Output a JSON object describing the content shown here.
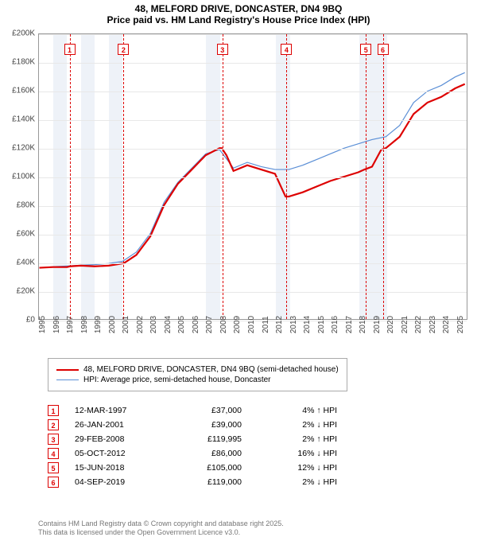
{
  "title": "48, MELFORD DRIVE, DONCASTER, DN4 9BQ",
  "subtitle": "Price paid vs. HM Land Registry's House Price Index (HPI)",
  "chart": {
    "type": "line",
    "ylim": [
      0,
      200000
    ],
    "ytick_step": 20000,
    "xlim": [
      1995,
      2025.8
    ],
    "xticks": [
      1995,
      1996,
      1997,
      1998,
      1999,
      2000,
      2001,
      2002,
      2003,
      2004,
      2005,
      2006,
      2007,
      2008,
      2009,
      2010,
      2011,
      2012,
      2013,
      2014,
      2015,
      2016,
      2017,
      2018,
      2019,
      2020,
      2021,
      2022,
      2023,
      2024,
      2025
    ],
    "y_prefix": "£",
    "y_suffix": "K",
    "grid_color": "#e8e8e8",
    "band_color": "#e2eaf4",
    "bands": [
      [
        1996,
        1997
      ],
      [
        1998,
        1999
      ],
      [
        2000,
        2001
      ],
      [
        2007,
        2008
      ],
      [
        2012,
        2013
      ],
      [
        2018,
        2019
      ],
      [
        2019,
        2020
      ]
    ],
    "series": [
      {
        "name": "48, MELFORD DRIVE, DONCASTER, DN4 9BQ (semi-detached house)",
        "color": "#dd0000",
        "width": 2.2,
        "data": [
          [
            1995,
            36000
          ],
          [
            1996,
            36500
          ],
          [
            1997,
            36500
          ],
          [
            1997.2,
            37000
          ],
          [
            1998,
            37500
          ],
          [
            1999,
            37000
          ],
          [
            2000,
            37500
          ],
          [
            2001,
            39000
          ],
          [
            2001.07,
            39000
          ],
          [
            2002,
            45000
          ],
          [
            2003,
            58000
          ],
          [
            2004,
            80000
          ],
          [
            2005,
            95000
          ],
          [
            2006,
            105000
          ],
          [
            2007,
            115000
          ],
          [
            2008,
            120000
          ],
          [
            2008.16,
            119995
          ],
          [
            2008.5,
            115000
          ],
          [
            2009,
            104000
          ],
          [
            2010,
            108000
          ],
          [
            2011,
            105000
          ],
          [
            2012,
            102000
          ],
          [
            2012.76,
            86000
          ],
          [
            2013,
            86000
          ],
          [
            2014,
            89000
          ],
          [
            2015,
            93000
          ],
          [
            2016,
            97000
          ],
          [
            2017,
            100000
          ],
          [
            2018,
            103000
          ],
          [
            2018.46,
            105000
          ],
          [
            2019,
            107000
          ],
          [
            2019.67,
            119000
          ],
          [
            2020,
            120000
          ],
          [
            2021,
            128000
          ],
          [
            2022,
            144000
          ],
          [
            2023,
            152000
          ],
          [
            2024,
            156000
          ],
          [
            2025,
            162000
          ],
          [
            2025.7,
            165000
          ]
        ]
      },
      {
        "name": "HPI: Average price, semi-detached house, Doncaster",
        "color": "#5b8fd6",
        "width": 1.2,
        "data": [
          [
            1995,
            36000
          ],
          [
            1996,
            36800
          ],
          [
            1997,
            37200
          ],
          [
            1998,
            37800
          ],
          [
            1999,
            38200
          ],
          [
            2000,
            39000
          ],
          [
            2001,
            40500
          ],
          [
            2002,
            47000
          ],
          [
            2003,
            60000
          ],
          [
            2004,
            82000
          ],
          [
            2005,
            96000
          ],
          [
            2006,
            106000
          ],
          [
            2007,
            116000
          ],
          [
            2008,
            119000
          ],
          [
            2009,
            106000
          ],
          [
            2010,
            110000
          ],
          [
            2011,
            107000
          ],
          [
            2012,
            105000
          ],
          [
            2013,
            105000
          ],
          [
            2014,
            108000
          ],
          [
            2015,
            112000
          ],
          [
            2016,
            116000
          ],
          [
            2017,
            120000
          ],
          [
            2018,
            123000
          ],
          [
            2019,
            126000
          ],
          [
            2020,
            128000
          ],
          [
            2021,
            136000
          ],
          [
            2022,
            152000
          ],
          [
            2023,
            160000
          ],
          [
            2024,
            164000
          ],
          [
            2025,
            170000
          ],
          [
            2025.7,
            173000
          ]
        ]
      }
    ],
    "markers": [
      {
        "n": "1",
        "x": 1997.2,
        "date": "12-MAR-1997",
        "price": "£37,000",
        "diff": "4% ↑ HPI"
      },
      {
        "n": "2",
        "x": 2001.07,
        "date": "26-JAN-2001",
        "price": "£39,000",
        "diff": "2% ↓ HPI"
      },
      {
        "n": "3",
        "x": 2008.16,
        "date": "29-FEB-2008",
        "price": "£119,995",
        "diff": "2% ↑ HPI"
      },
      {
        "n": "4",
        "x": 2012.76,
        "date": "05-OCT-2012",
        "price": "£86,000",
        "diff": "16% ↓ HPI"
      },
      {
        "n": "5",
        "x": 2018.46,
        "date": "15-JUN-2018",
        "price": "£105,000",
        "diff": "12% ↓ HPI"
      },
      {
        "n": "6",
        "x": 2019.67,
        "date": "04-SEP-2019",
        "price": "£119,000",
        "diff": "2% ↓ HPI"
      }
    ]
  },
  "legend_title": "",
  "footer_line1": "Contains HM Land Registry data © Crown copyright and database right 2025.",
  "footer_line2": "This data is licensed under the Open Government Licence v3.0."
}
